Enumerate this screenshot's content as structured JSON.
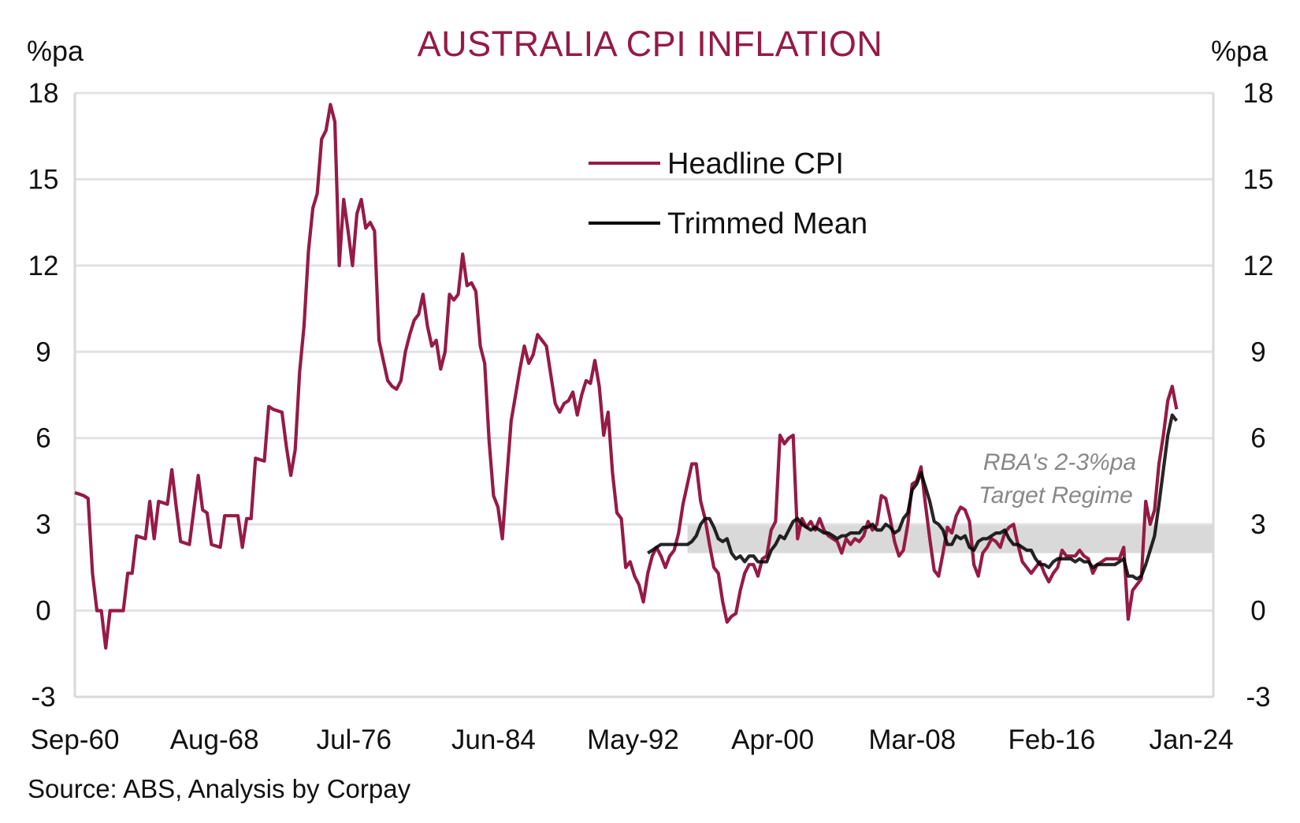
{
  "chart_data": {
    "type": "line",
    "title": "AUSTRALIA CPI INFLATION",
    "ylabel_left": "%pa",
    "ylabel_right": "%pa",
    "ylim": [
      -3,
      18
    ],
    "yticks": [
      18,
      15,
      12,
      9,
      6,
      3,
      0,
      -3
    ],
    "xlim": [
      "Sep-60",
      "Apr-25"
    ],
    "xticks": [
      "Sep-60",
      "Aug-68",
      "Jul-76",
      "Jun-84",
      "May-92",
      "Apr-00",
      "Mar-08",
      "Feb-16",
      "Jan-24"
    ],
    "grid": "horizontal",
    "legend_position": "top-center",
    "source": "Source: ABS, Analysis by Corpay",
    "annotation": [
      "RBA's 2-3%pa",
      "Target Regime"
    ],
    "target_band": {
      "low": 2,
      "high": 3,
      "start": "Jun-95",
      "color": "#d9d9d9"
    },
    "series": [
      {
        "name": "Headline CPI",
        "color": "#951b45",
        "frequency": "quarterly",
        "start": "Sep-60",
        "values": [
          4.1,
          4.05,
          4.0,
          3.9,
          1.3,
          0,
          0,
          -1.3,
          0,
          0,
          0,
          0,
          1.3,
          1.3,
          2.6,
          2.55,
          2.5,
          3.8,
          2.5,
          3.8,
          3.75,
          3.7,
          4.9,
          3.6,
          2.4,
          2.35,
          2.3,
          3.5,
          4.7,
          3.5,
          3.4,
          2.3,
          2.25,
          2.2,
          3.3,
          3.3,
          3.3,
          3.3,
          2.2,
          3.2,
          3.2,
          5.3,
          5.25,
          5.2,
          7.1,
          7.0,
          6.95,
          6.9,
          5.7,
          4.7,
          5.6,
          8.3,
          9.9,
          12.5,
          14.0,
          14.5,
          16.4,
          16.7,
          17.6,
          17.0,
          12.0,
          14.3,
          13.2,
          12.0,
          13.8,
          14.3,
          13.3,
          13.5,
          13.2,
          9.4,
          8.7,
          8.0,
          7.8,
          7.7,
          8.0,
          9.0,
          9.6,
          10.1,
          10.3,
          11.0,
          9.9,
          9.2,
          9.4,
          8.4,
          9.0,
          11.0,
          10.8,
          11.0,
          12.4,
          11.3,
          11.4,
          11.1,
          9.2,
          8.6,
          5.9,
          4.0,
          3.6,
          2.5,
          4.6,
          6.6,
          7.5,
          8.4,
          9.2,
          8.6,
          8.9,
          9.6,
          9.4,
          9.2,
          8.2,
          7.2,
          6.9,
          7.2,
          7.3,
          7.6,
          6.8,
          7.5,
          8.0,
          7.9,
          8.7,
          7.8,
          6.1,
          6.9,
          4.8,
          3.4,
          3.2,
          1.5,
          1.7,
          1.2,
          0.9,
          0.3,
          1.3,
          1.9,
          2.2,
          1.9,
          1.5,
          1.9,
          2.1,
          2.7,
          3.7,
          4.4,
          5.1,
          5.1,
          3.8,
          3.2,
          2.3,
          1.5,
          1.3,
          0.3,
          -0.4,
          -0.2,
          -0.1,
          0.7,
          1.3,
          1.6,
          1.6,
          1.2,
          1.8,
          1.9,
          2.8,
          3.1,
          6.1,
          5.8,
          6.0,
          6.1,
          2.5,
          3.2,
          2.9,
          3.1,
          2.8,
          3.2,
          2.8,
          2.6,
          2.5,
          2.4,
          2.0,
          2.5,
          2.3,
          2.5,
          2.4,
          2.6,
          3.1,
          2.8,
          3.0,
          4.0,
          3.9,
          3.2,
          2.4,
          1.9,
          2.1,
          3.0,
          4.4,
          4.5,
          5.0,
          3.7,
          2.5,
          1.4,
          1.2,
          2.0,
          2.9,
          2.7,
          3.3,
          3.6,
          3.5,
          3.1,
          1.6,
          1.2,
          2.0,
          2.2,
          2.5,
          2.4,
          2.2,
          2.7,
          2.9,
          3.0,
          2.3,
          1.7,
          1.5,
          1.3,
          1.5,
          1.7,
          1.3,
          1.0,
          1.3,
          1.5,
          2.1,
          1.9,
          1.9,
          1.9,
          2.1,
          1.9,
          1.8,
          1.3,
          1.6,
          1.7,
          1.8,
          1.8,
          1.8,
          1.8,
          2.2,
          -0.3,
          0.7,
          0.9,
          1.1,
          3.8,
          3.0,
          3.5,
          5.1,
          6.1,
          7.3,
          7.8,
          7.0
        ]
      },
      {
        "name": "Trimmed Mean",
        "color": "#000000",
        "frequency": "quarterly",
        "start": "Mar-93",
        "values": [
          2.0,
          2.1,
          2.2,
          2.3,
          2.3,
          2.3,
          2.3,
          2.3,
          2.3,
          2.3,
          2.4,
          2.6,
          3.0,
          3.2,
          3.2,
          2.9,
          2.5,
          2.4,
          2.5,
          2.0,
          1.8,
          1.9,
          1.7,
          1.9,
          1.9,
          1.7,
          1.7,
          1.7,
          2.1,
          2.3,
          2.6,
          2.5,
          2.8,
          3.1,
          3.2,
          3.0,
          2.9,
          2.8,
          2.9,
          2.8,
          2.7,
          2.7,
          2.6,
          2.5,
          2.6,
          2.6,
          2.7,
          2.7,
          2.7,
          2.9,
          2.9,
          3.0,
          2.8,
          2.8,
          3.0,
          2.9,
          2.7,
          2.8,
          3.2,
          3.4,
          4.2,
          4.4,
          4.8,
          4.3,
          3.8,
          3.1,
          3.0,
          2.8,
          2.3,
          2.3,
          2.6,
          2.5,
          2.6,
          2.2,
          2.1,
          2.4,
          2.5,
          2.5,
          2.6,
          2.7,
          2.7,
          2.8,
          2.5,
          2.3,
          2.3,
          2.2,
          2.1,
          2.1,
          1.8,
          1.6,
          1.6,
          1.5,
          1.7,
          1.8,
          1.8,
          1.8,
          1.8,
          1.7,
          1.8,
          1.7,
          1.7,
          1.5,
          1.6,
          1.6,
          1.6,
          1.6,
          1.6,
          1.7,
          1.8,
          1.2,
          1.2,
          1.1,
          1.2,
          1.6,
          2.1,
          2.6,
          3.7,
          4.9,
          6.1,
          6.8,
          6.6
        ]
      }
    ]
  }
}
